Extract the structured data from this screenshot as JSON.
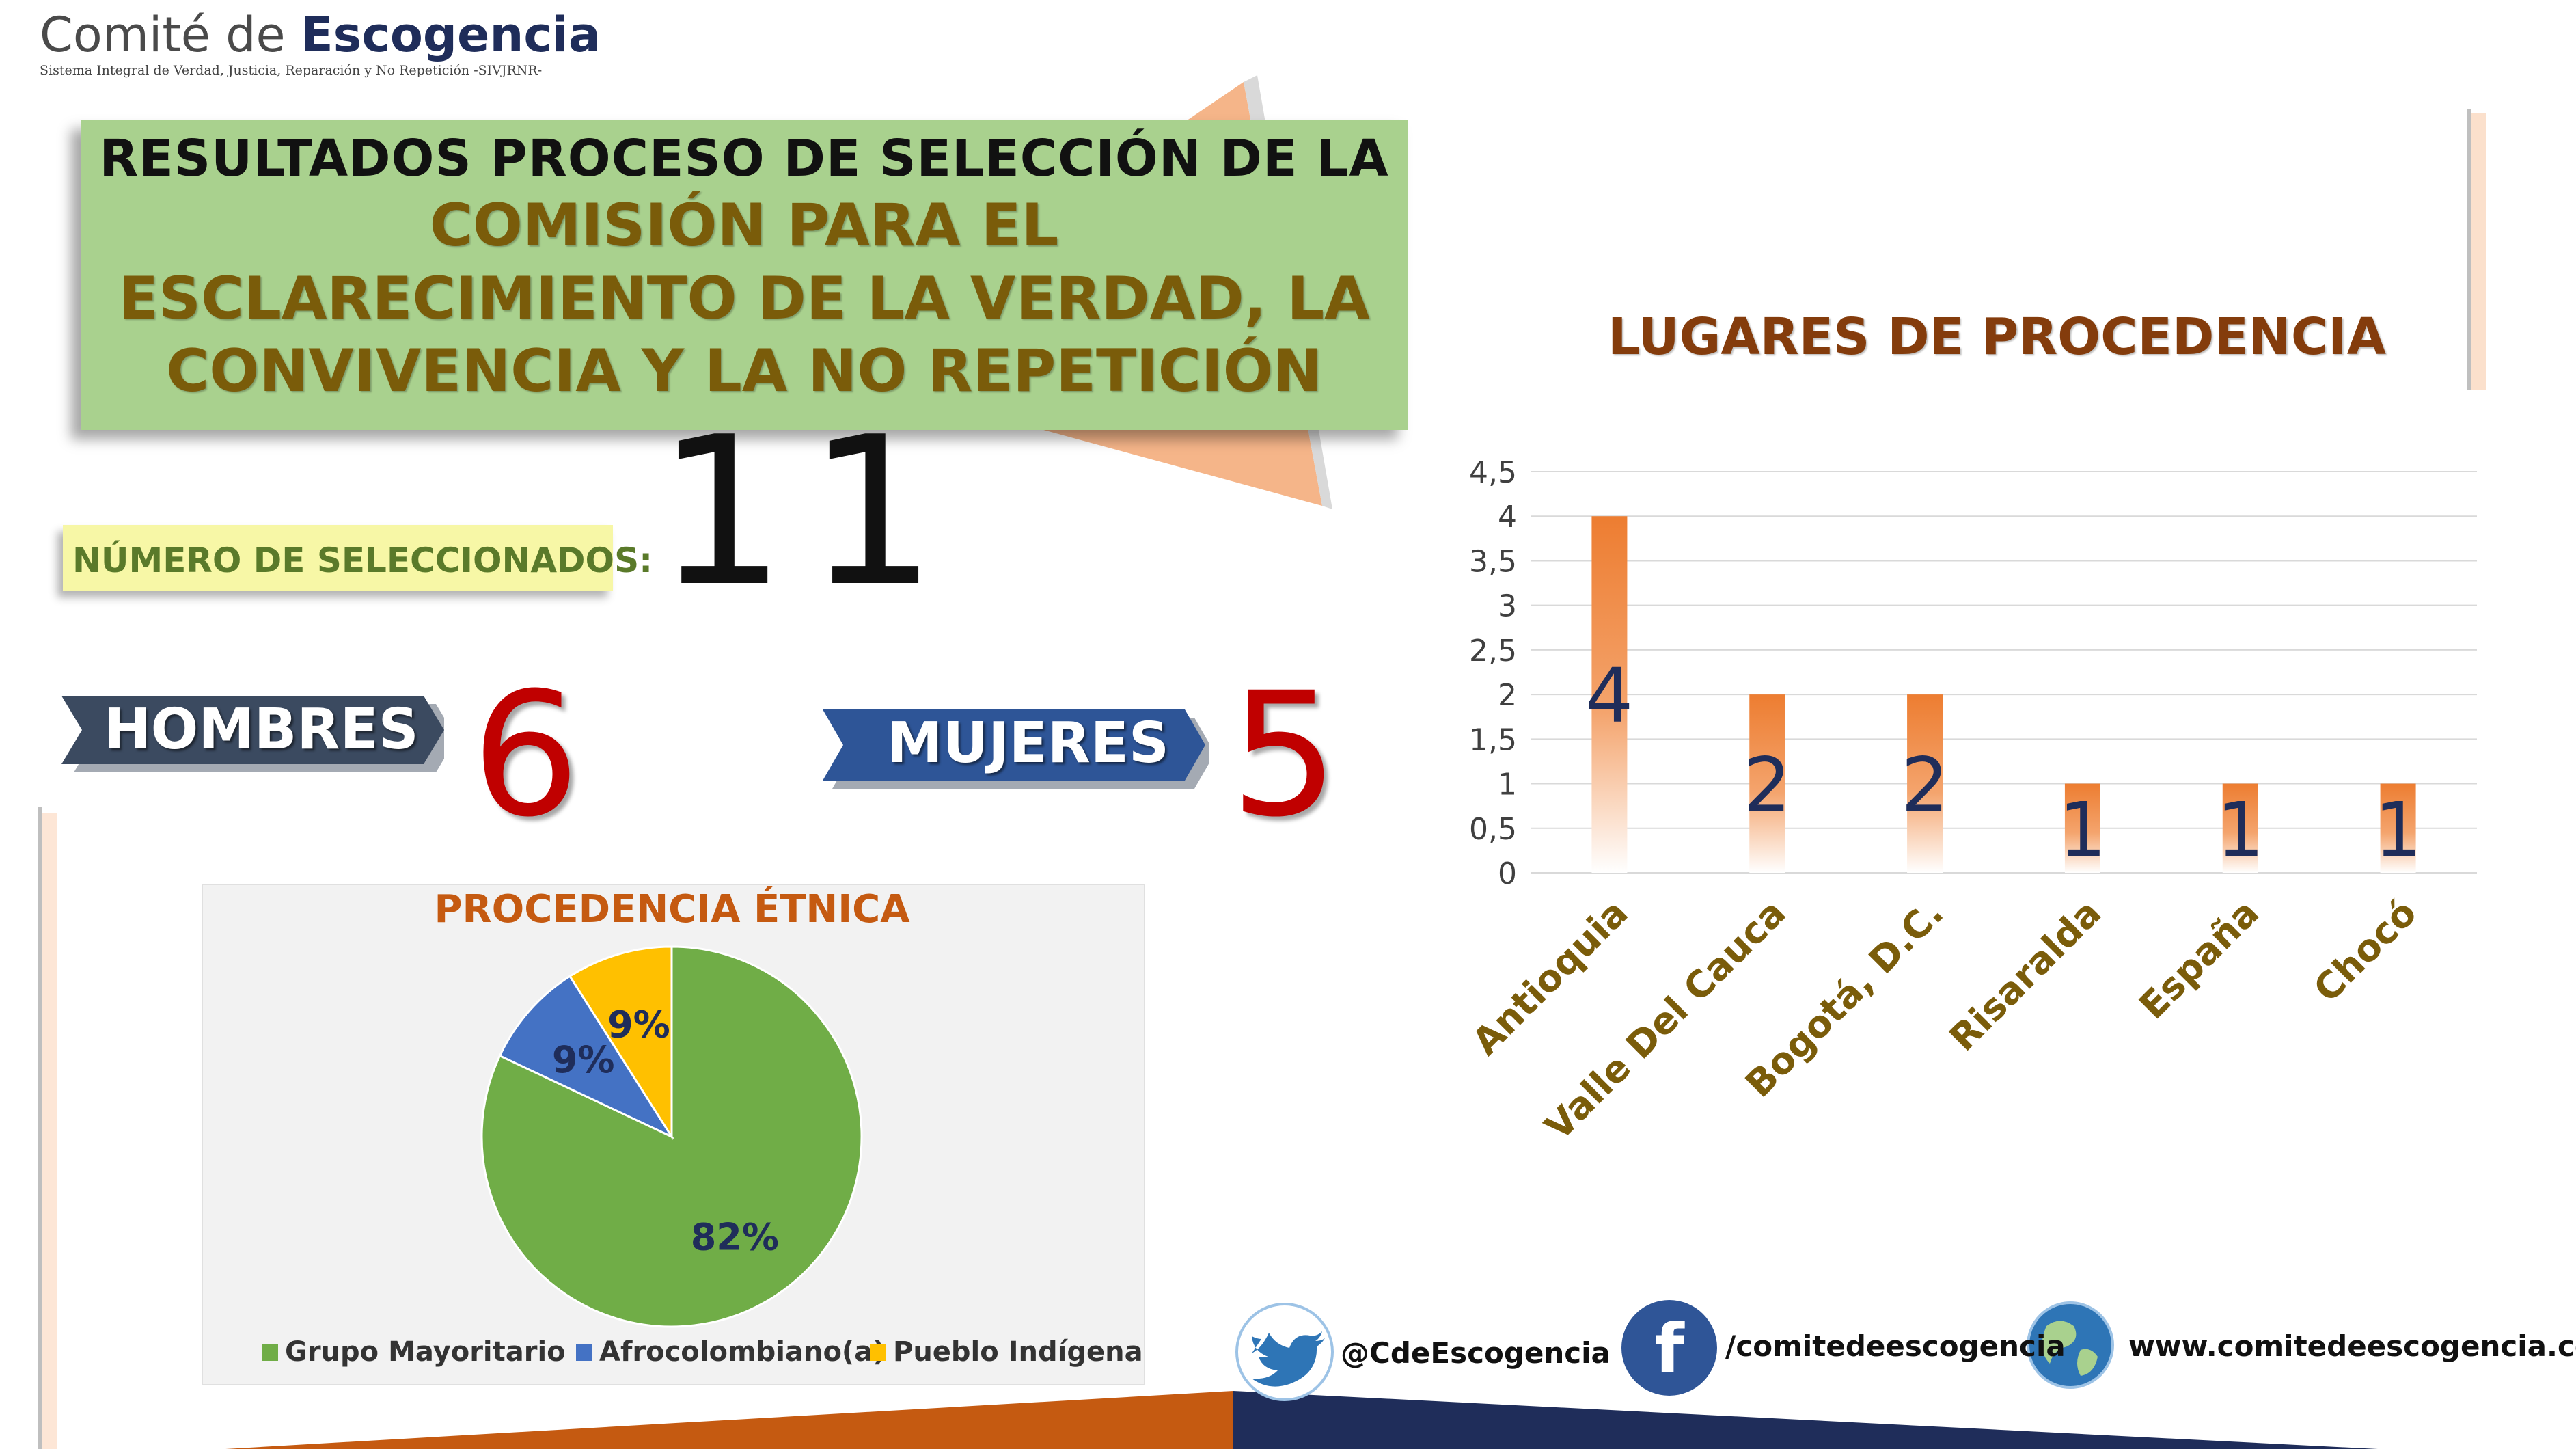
{
  "brand": {
    "name_part1": "Comité de ",
    "name_part2": "Escogencia",
    "subtitle": "Sistema Integral de Verdad, Justicia, Reparación y No Repetición -SIVJRNR-"
  },
  "title": {
    "line1": "RESULTADOS PROCESO DE SELECCIÓN DE LA",
    "line2": "COMISIÓN PARA EL",
    "line3": "ESCLARECIMIENTO DE LA VERDAD, LA",
    "line4": "CONVIVENCIA Y LA NO REPETICIÓN"
  },
  "selected": {
    "label": "NÚMERO DE SELECCIONADOS:",
    "count": "11"
  },
  "hombres": {
    "label": "HOMBRES",
    "count": "6"
  },
  "mujeres": {
    "label": "MUJERES",
    "count": "5"
  },
  "colors": {
    "title_box": "#a9d18e",
    "bar": "#ed7d31",
    "pie_green": "#70ad47",
    "pie_blue": "#4472c4",
    "pie_yellow": "#ffc000",
    "count_red": "#c00000",
    "footer_orange": "#c55a11",
    "footer_navy": "#1f2d5a"
  },
  "chart_data": [
    {
      "type": "pie",
      "title": "PROCEDENCIA ÉTNICA",
      "slices": [
        {
          "name": "Grupo Mayoritario",
          "value": 82,
          "label": "82%",
          "color": "#70ad47"
        },
        {
          "name": "Afrocolombiano(a)",
          "value": 9,
          "label": "9%",
          "color": "#4472c4"
        },
        {
          "name": "Pueblo Indígena",
          "value": 9,
          "label": "9%",
          "color": "#ffc000"
        }
      ],
      "legend_position": "bottom"
    },
    {
      "type": "bar",
      "title": "LUGARES DE PROCEDENCIA",
      "categories": [
        "Antioquia",
        "Valle Del Cauca",
        "Bogotá, D.C.",
        "Risaralda",
        "España",
        "Chocó"
      ],
      "values": [
        4,
        2,
        2,
        1,
        1,
        1
      ],
      "data_labels": [
        "4",
        "2",
        "2",
        "1",
        "1",
        "1"
      ],
      "ylim": [
        0,
        4.5
      ],
      "yticks": [
        "0",
        "0,5",
        "1",
        "1,5",
        "2",
        "2,5",
        "3",
        "3,5",
        "4",
        "4,5"
      ],
      "grid": true,
      "xlabel": "",
      "ylabel": ""
    }
  ],
  "social": {
    "twitter": "@CdeEscogencia",
    "facebook": "/comitedeescogencia",
    "web": "www.comitedeescogencia.com"
  }
}
